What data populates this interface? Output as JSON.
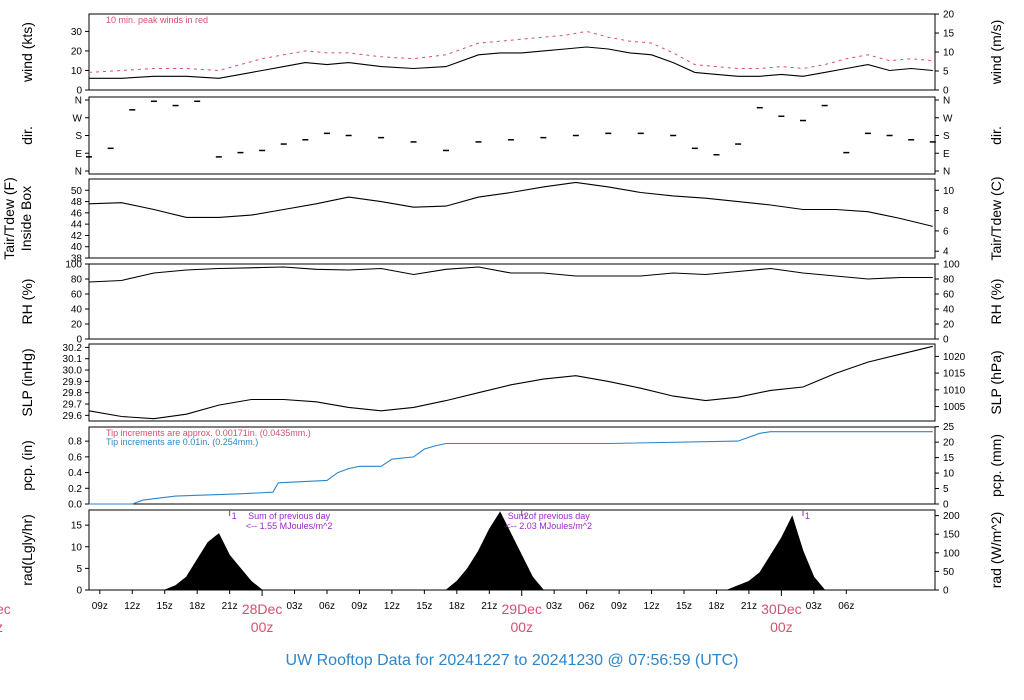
{
  "chart_data": [
    {
      "id": "wind",
      "type": "line",
      "ylabel_left": "wind (kts)",
      "ylabel_right": "wind (m/s)",
      "left_ticks": [
        0,
        10,
        20,
        30
      ],
      "right_ticks": [
        0,
        5,
        10,
        15,
        20
      ],
      "ylim": [
        0,
        38.9
      ],
      "annotation": "10 min. peak winds in red",
      "series": [
        {
          "color": "#000000",
          "x_hours": [
            0,
            3,
            6,
            9,
            12,
            14,
            16,
            18,
            20,
            22,
            24,
            27,
            30,
            33,
            36,
            38,
            40,
            42,
            44,
            46,
            48,
            50,
            52,
            54,
            56,
            58,
            60,
            62,
            64,
            66,
            68,
            70,
            72,
            74,
            76,
            78
          ],
          "values": [
            6,
            6,
            7,
            7,
            6,
            8,
            10,
            12,
            14,
            13,
            14,
            12,
            11,
            12,
            18,
            19,
            19,
            20,
            21,
            22,
            21,
            19,
            18,
            14,
            9,
            8,
            7,
            7,
            8,
            7,
            9,
            11,
            13,
            10,
            11,
            10
          ]
        },
        {
          "color": "#d4506e",
          "x_hours": [
            0,
            3,
            6,
            9,
            12,
            14,
            16,
            18,
            20,
            22,
            24,
            27,
            30,
            33,
            36,
            38,
            40,
            42,
            44,
            46,
            48,
            50,
            52,
            54,
            56,
            58,
            60,
            62,
            64,
            66,
            68,
            70,
            72,
            74,
            76,
            78
          ],
          "values": [
            9,
            10,
            11,
            11,
            10,
            13,
            16,
            18,
            20,
            19,
            19,
            17,
            16,
            18,
            24,
            25,
            26,
            27,
            28,
            30,
            27,
            25,
            24,
            19,
            13,
            12,
            11,
            11,
            12,
            11,
            13,
            16,
            18,
            15,
            16,
            15
          ]
        }
      ]
    },
    {
      "id": "dir",
      "type": "scatter",
      "ylabel_left": "dir.",
      "ylabel_right": "dir.",
      "left_ticks": [
        "N",
        "W",
        "S",
        "E",
        "N"
      ],
      "right_ticks": [
        "N",
        "W",
        "S",
        "E",
        "N"
      ],
      "ylim": [
        0,
        360
      ],
      "series": [
        {
          "color": "#000000",
          "x_hours": [
            0,
            2,
            4,
            6,
            8,
            10,
            12,
            14,
            16,
            18,
            20,
            22,
            24,
            27,
            30,
            33,
            36,
            39,
            42,
            45,
            48,
            51,
            54,
            56,
            58,
            60,
            62,
            64,
            66,
            68,
            70,
            72,
            74,
            76,
            78
          ],
          "values": [
            80,
            120,
            300,
            340,
            320,
            340,
            80,
            100,
            110,
            140,
            160,
            190,
            180,
            170,
            150,
            110,
            150,
            160,
            170,
            180,
            190,
            190,
            180,
            120,
            90,
            140,
            310,
            270,
            250,
            320,
            100,
            190,
            180,
            160,
            150
          ]
        }
      ]
    },
    {
      "id": "temp",
      "type": "line",
      "ylabel_left": "Tair/Tdew (F)\nInside Box",
      "ylabel_right": "Tair/Tdew (C)",
      "left_ticks": [
        38,
        40,
        42,
        44,
        46,
        48,
        50
      ],
      "right_ticks": [
        4,
        6,
        8,
        10
      ],
      "ylim": [
        38,
        52
      ],
      "series": [
        {
          "color": "#000000",
          "x_hours": [
            0,
            3,
            6,
            9,
            12,
            15,
            18,
            21,
            24,
            27,
            30,
            33,
            36,
            39,
            42,
            45,
            48,
            51,
            54,
            57,
            60,
            63,
            66,
            69,
            72,
            75,
            78
          ],
          "values": [
            47.6,
            47.8,
            46.6,
            45.2,
            45.2,
            45.6,
            46.6,
            47.6,
            48.8,
            48.0,
            47.0,
            47.2,
            48.8,
            49.6,
            50.6,
            51.4,
            50.6,
            49.6,
            49.0,
            48.6,
            48.0,
            47.4,
            46.6,
            46.6,
            46.2,
            45.0,
            43.6
          ]
        }
      ]
    },
    {
      "id": "rh",
      "type": "line",
      "ylabel_left": "RH (%)",
      "ylabel_right": "RH (%)",
      "left_ticks": [
        0,
        20,
        40,
        60,
        80,
        100
      ],
      "right_ticks": [
        0,
        20,
        40,
        60,
        80,
        100
      ],
      "ylim": [
        0,
        100
      ],
      "series": [
        {
          "color": "#000000",
          "x_hours": [
            0,
            3,
            6,
            9,
            12,
            15,
            18,
            21,
            24,
            27,
            30,
            33,
            36,
            39,
            42,
            45,
            48,
            51,
            54,
            57,
            60,
            63,
            66,
            69,
            72,
            75,
            78
          ],
          "values": [
            76,
            78,
            88,
            92,
            94,
            95,
            96,
            93,
            92,
            94,
            86,
            93,
            96,
            88,
            88,
            84,
            84,
            84,
            88,
            86,
            90,
            94,
            88,
            84,
            80,
            82,
            82
          ]
        }
      ]
    },
    {
      "id": "slp",
      "type": "line",
      "ylabel_left": "SLP (inHg)",
      "ylabel_right": "SLP (hPa)",
      "left_ticks": [
        29.6,
        29.7,
        29.8,
        29.9,
        30.0,
        30.1,
        30.2
      ],
      "right_ticks": [
        1005,
        1010,
        1015,
        1020
      ],
      "ylim": [
        29.55,
        30.23
      ],
      "series": [
        {
          "color": "#000000",
          "x_hours": [
            0,
            3,
            6,
            9,
            12,
            15,
            18,
            21,
            24,
            27,
            30,
            33,
            36,
            39,
            42,
            45,
            48,
            51,
            54,
            57,
            60,
            63,
            66,
            69,
            72,
            75,
            78
          ],
          "values": [
            29.64,
            29.59,
            29.57,
            29.61,
            29.69,
            29.74,
            29.74,
            29.72,
            29.67,
            29.64,
            29.67,
            29.73,
            29.8,
            29.87,
            29.92,
            29.95,
            29.9,
            29.84,
            29.77,
            29.73,
            29.76,
            29.82,
            29.85,
            29.97,
            30.07,
            30.14,
            30.21
          ]
        }
      ]
    },
    {
      "id": "pcp",
      "type": "line",
      "ylabel_left": "pcp. (in)",
      "ylabel_right": "pcp. (mm)",
      "left_ticks": [
        0.0,
        0.2,
        0.4,
        0.6,
        0.8
      ],
      "right_ticks": [
        0,
        5,
        10,
        15,
        20,
        25
      ],
      "ylim": [
        0,
        0.98
      ],
      "annotation_red": "Tip increments are approx. 0.00171in. (0.0435mm.)",
      "annotation_blue": "Tip increments are 0.01in. (0.254mm.)",
      "series": [
        {
          "color": "#2d86c8",
          "x_hours": [
            0,
            4,
            5,
            8,
            14,
            17,
            17.5,
            22,
            23,
            24,
            25,
            27,
            28,
            30,
            31,
            32,
            33,
            36,
            48,
            60,
            62,
            63,
            78
          ],
          "values": [
            0,
            0,
            0.05,
            0.1,
            0.13,
            0.15,
            0.27,
            0.3,
            0.4,
            0.45,
            0.48,
            0.48,
            0.57,
            0.6,
            0.7,
            0.74,
            0.77,
            0.77,
            0.77,
            0.8,
            0.9,
            0.92,
            0.92
          ]
        }
      ]
    },
    {
      "id": "rad",
      "type": "area",
      "ylabel_left": "rad(Lgly/hr)",
      "ylabel_right": "rad (W/m^2)",
      "left_ticks": [
        0,
        5,
        10,
        15
      ],
      "right_ticks": [
        0,
        50,
        100,
        150,
        200
      ],
      "ylim": [
        0,
        18.5
      ],
      "series": [
        {
          "color": "#000000",
          "x_hours": [
            7,
            8,
            9,
            10,
            11,
            12,
            13,
            14,
            15,
            16,
            33,
            34,
            35,
            36,
            37,
            38,
            39,
            40,
            41,
            42,
            59,
            60,
            61,
            62,
            63,
            64,
            65,
            66,
            67,
            68
          ],
          "values": [
            0,
            1,
            3,
            7,
            11,
            13,
            8,
            5,
            2,
            0,
            0,
            2,
            5,
            9,
            14,
            18,
            13,
            8,
            3,
            0,
            0,
            1,
            2,
            4,
            8,
            12,
            17,
            9,
            3,
            0
          ]
        }
      ],
      "markers": [
        {
          "x_hours": 13,
          "label": "1"
        },
        {
          "x_hours": 40,
          "label": "2"
        },
        {
          "x_hours": 66,
          "label": "1"
        }
      ],
      "day_sums": [
        {
          "line1": "Sum of previous day",
          "line2": "<-- 1.55 MJoules/m^2"
        },
        {
          "line1": "Sum of previous day",
          "line2": "<-- 2.03 MJoules/m^2"
        }
      ]
    }
  ],
  "time_axis": {
    "hour_labels": [
      "09z",
      "12z",
      "15z",
      "18z",
      "21z",
      "03z",
      "06z",
      "09z",
      "12z",
      "15z",
      "18z",
      "21z",
      "03z",
      "06z",
      "09z",
      "12z",
      "15z",
      "18z",
      "21z",
      "03z",
      "06z"
    ],
    "hour_offsets": [
      1,
      4,
      7,
      10,
      13,
      19,
      22,
      25,
      28,
      31,
      34,
      37,
      43,
      46,
      49,
      52,
      55,
      58,
      61,
      67,
      70
    ],
    "day_labels": [
      {
        "date": "28Dec",
        "z": "00z",
        "offset": 16
      },
      {
        "date": "29Dec",
        "z": "00z",
        "offset": 40
      },
      {
        "date": "30Dec",
        "z": "00z",
        "offset": 64
      }
    ],
    "clipped_left": {
      "date": "ec",
      "z": "z"
    }
  },
  "footer_title": "UW Rooftop Data for 20241227  to  20241230 @ 07:56:59  (UTC)"
}
